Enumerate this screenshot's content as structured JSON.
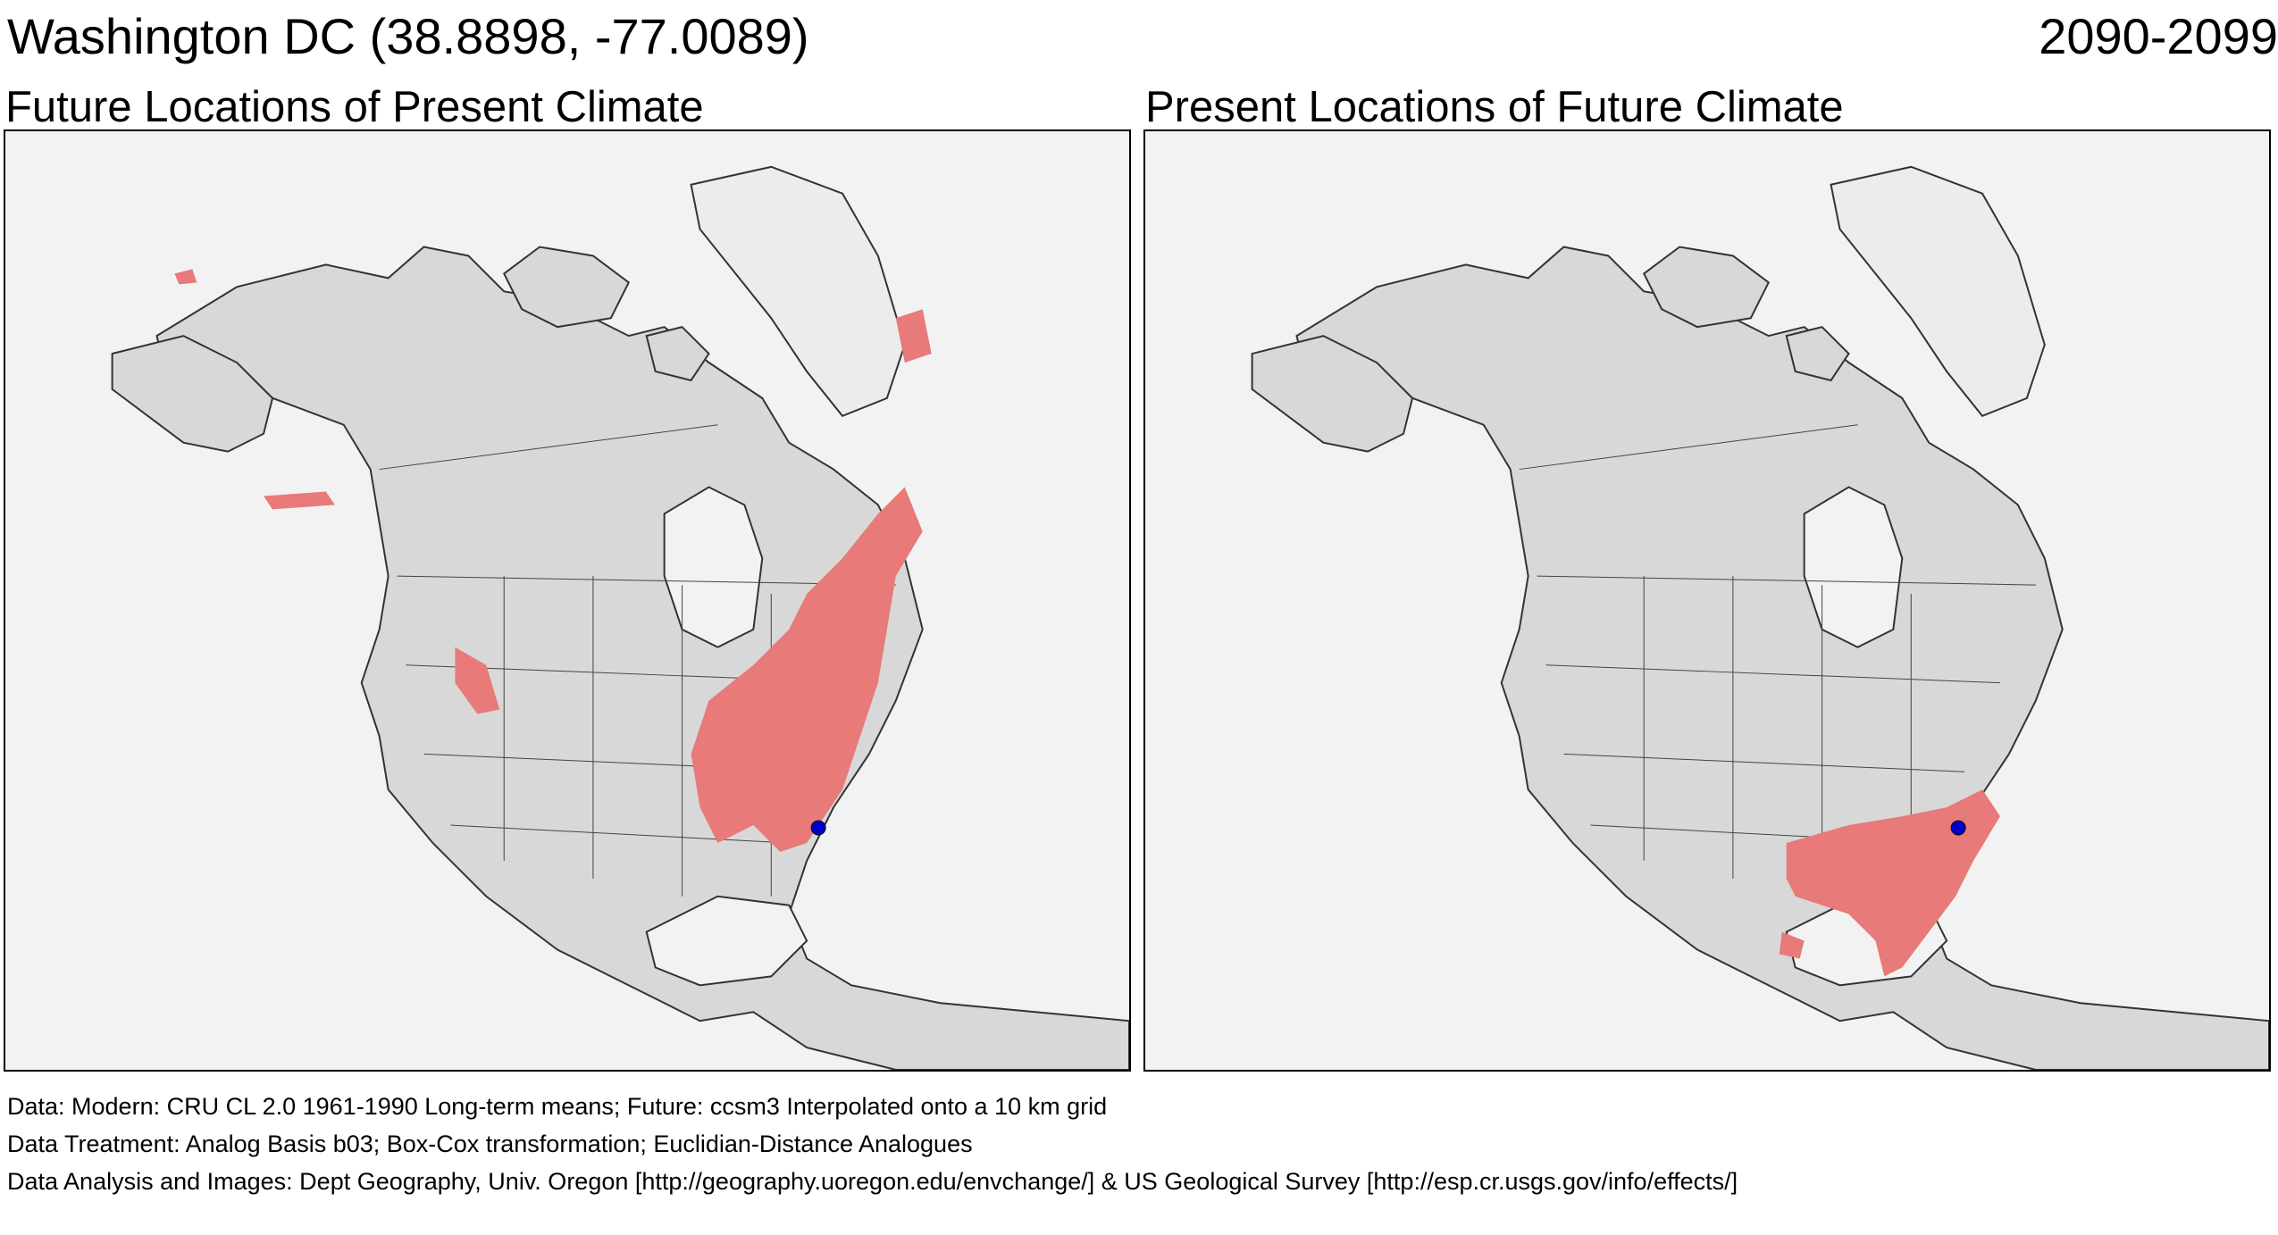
{
  "header": {
    "location": "Washington DC  (38.8898, -77.0089)",
    "period": "2090-2099"
  },
  "panels": [
    {
      "title": "Future Locations of Present Climate"
    },
    {
      "title": "Present Locations of Future Climate"
    }
  ],
  "footer": {
    "line1": "Data:  Modern: CRU CL 2.0 1961-1990 Long-term means; Future: ccsm3 Interpolated onto a 10 km grid",
    "line2": "Data Treatment:  Analog Basis b03; Box-Cox transformation; Euclidian-Distance Analogues",
    "line3": "Data Analysis and Images:  Dept Geography, Univ. Oregon [http://geography.uoregon.edu/envchange/] & US Geological Survey [http://esp.cr.usgs.gov/info/effects/]"
  },
  "colors": {
    "analog_fill": "#e87a7a",
    "site_marker": "#0000cc",
    "land": "#d9d9d9",
    "ocean": "#f2f2f2"
  }
}
